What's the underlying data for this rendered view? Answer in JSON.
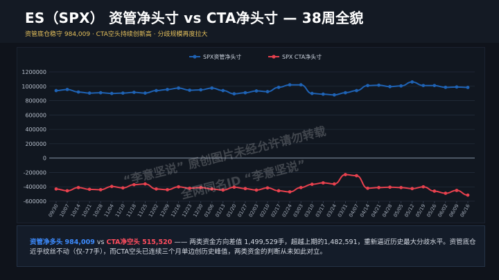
{
  "header": {
    "title": "ES（SPX） 资管净头寸 vs CTA净头寸 — 38周全貌",
    "subtitle": "资管底仓稳守 984,009 · CTA空头持续创新高 · 分歧规模再度拉大"
  },
  "watermark": {
    "line1": "“李意坚说” 原创图片未经允许请勿转载",
    "line2": "全网同名ID “李意坚说”"
  },
  "footer": {
    "label_am": "资管净多头",
    "value_am": "984,009",
    "vs": "vs",
    "label_cta": "CTA净空头",
    "value_cta": "515,520",
    "text": "—— 两类资金方向差值 1,499,529手，超越上期的1,482,591，重新逼近历史最大分歧水平。资管底仓近乎纹丝不动（仅-77手），而CTA空头已连续三个月单边创历史峰值，两类资金的判断从未如此对立。"
  },
  "colors": {
    "am": "#1f63b5",
    "cta": "#e8414e"
  },
  "chart_data": {
    "type": "line",
    "categories": [
      "09/30",
      "10/07",
      "10/14",
      "10/21",
      "10/28",
      "11/04",
      "11/10",
      "11/18",
      "11/25",
      "12/02",
      "12/09",
      "12/16",
      "12/23",
      "12/30",
      "01/06",
      "01/13",
      "01/20",
      "01/27",
      "02/03",
      "02/10",
      "02/17",
      "02/24",
      "03/03",
      "03/10",
      "03/17",
      "03/24",
      "03/31",
      "04/07",
      "04/14",
      "04/21",
      "04/28",
      "05/05",
      "05/12",
      "05/19",
      "05/26",
      "06/02",
      "06/09",
      "06/16"
    ],
    "series": [
      {
        "name": "SPX资管净头寸",
        "color": "#1f63b5",
        "values": [
          940000,
          955000,
          920000,
          905000,
          910000,
          900000,
          905000,
          915000,
          905000,
          940000,
          955000,
          975000,
          945000,
          950000,
          975000,
          940000,
          895000,
          910000,
          935000,
          925000,
          985000,
          1020000,
          1020000,
          900000,
          890000,
          880000,
          910000,
          940000,
          1010000,
          1015000,
          995000,
          1005000,
          1060000,
          1010000,
          1010000,
          985000,
          990000,
          984009
        ]
      },
      {
        "name": "SPX CTA净头寸",
        "color": "#e8414e",
        "values": [
          -430000,
          -455000,
          -410000,
          -435000,
          -440000,
          -395000,
          -415000,
          -370000,
          -360000,
          -430000,
          -440000,
          -400000,
          -420000,
          -410000,
          -430000,
          -445000,
          -405000,
          -425000,
          -445000,
          -415000,
          -455000,
          -470000,
          -410000,
          -365000,
          -345000,
          -360000,
          -230000,
          -245000,
          -420000,
          -410000,
          -405000,
          -410000,
          -425000,
          -400000,
          -460000,
          -490000,
          -450000,
          -515520
        ]
      }
    ],
    "ylim": [
      -600000,
      1200000
    ],
    "yticks": [
      "1200000",
      "1000000",
      "800000",
      "600000",
      "400000",
      "200000",
      "0",
      "-200000",
      "-400000",
      "-600000"
    ],
    "legend_position": "top-center",
    "grid": true
  }
}
